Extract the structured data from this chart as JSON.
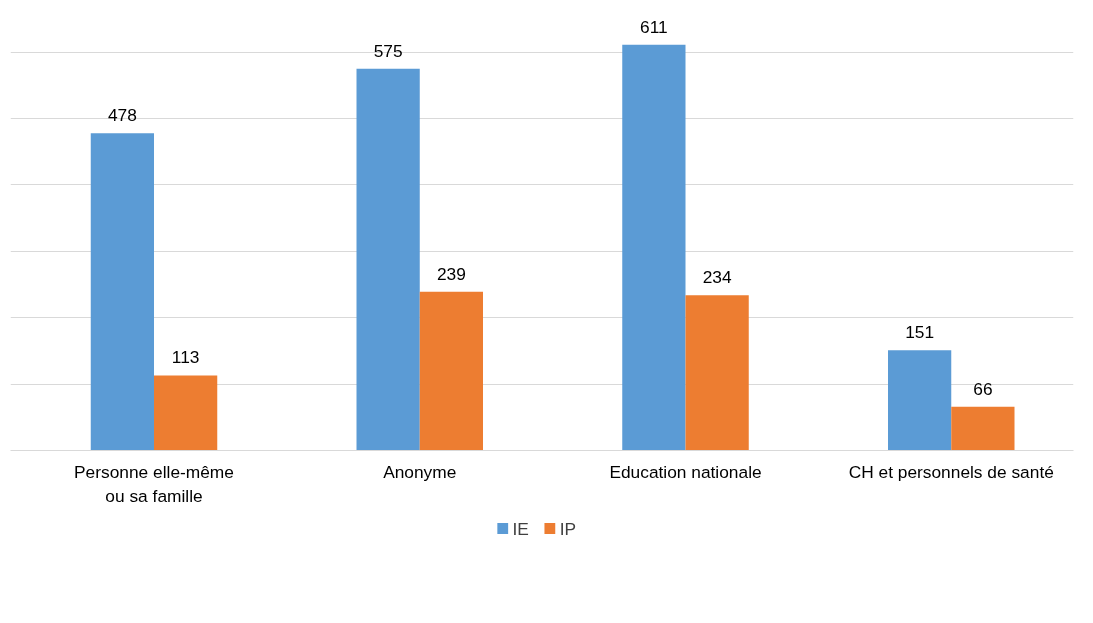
{
  "chart_data": {
    "type": "bar",
    "categories": [
      "Personne elle-même ou sa famille",
      "Anonyme",
      "Education nationale",
      "CH et personnels de santé"
    ],
    "series": [
      {
        "name": "IE",
        "color": "#5b9bd5",
        "values": [
          478,
          575,
          611,
          151
        ]
      },
      {
        "name": "IP",
        "color": "#ed7d31",
        "values": [
          113,
          239,
          234,
          66
        ]
      }
    ],
    "grid": "y",
    "legend": "bottom",
    "data_labels": true
  }
}
